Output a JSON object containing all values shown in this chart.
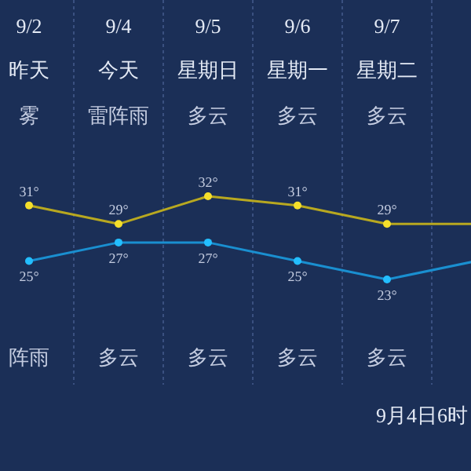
{
  "chart_data": {
    "type": "line",
    "categories": [
      "9/2",
      "9/4",
      "9/5",
      "9/6",
      "9/7",
      null
    ],
    "tick_labels": "x",
    "marker": "circle",
    "series": [
      {
        "color": "#b8a820",
        "values": [
          31,
          29,
          32,
          31,
          29,
          29
        ],
        "value_labels": [
          "31°",
          "29°",
          "32°",
          "31°",
          "29°",
          null
        ]
      },
      {
        "color": "#1a8fd0",
        "values": [
          25,
          27,
          27,
          25,
          23,
          25
        ],
        "value_labels": [
          "25°",
          "27°",
          "27°",
          "25°",
          "23°",
          null
        ]
      }
    ],
    "annotations": [
      "昨天",
      "雾",
      "阵雨",
      "今天",
      "雷阵雨",
      "多云",
      "星期日",
      "多云",
      "多云",
      "星期一",
      "多云",
      "多云",
      "星期二",
      "多云",
      "多云",
      "9月4日6时"
    ]
  }
}
